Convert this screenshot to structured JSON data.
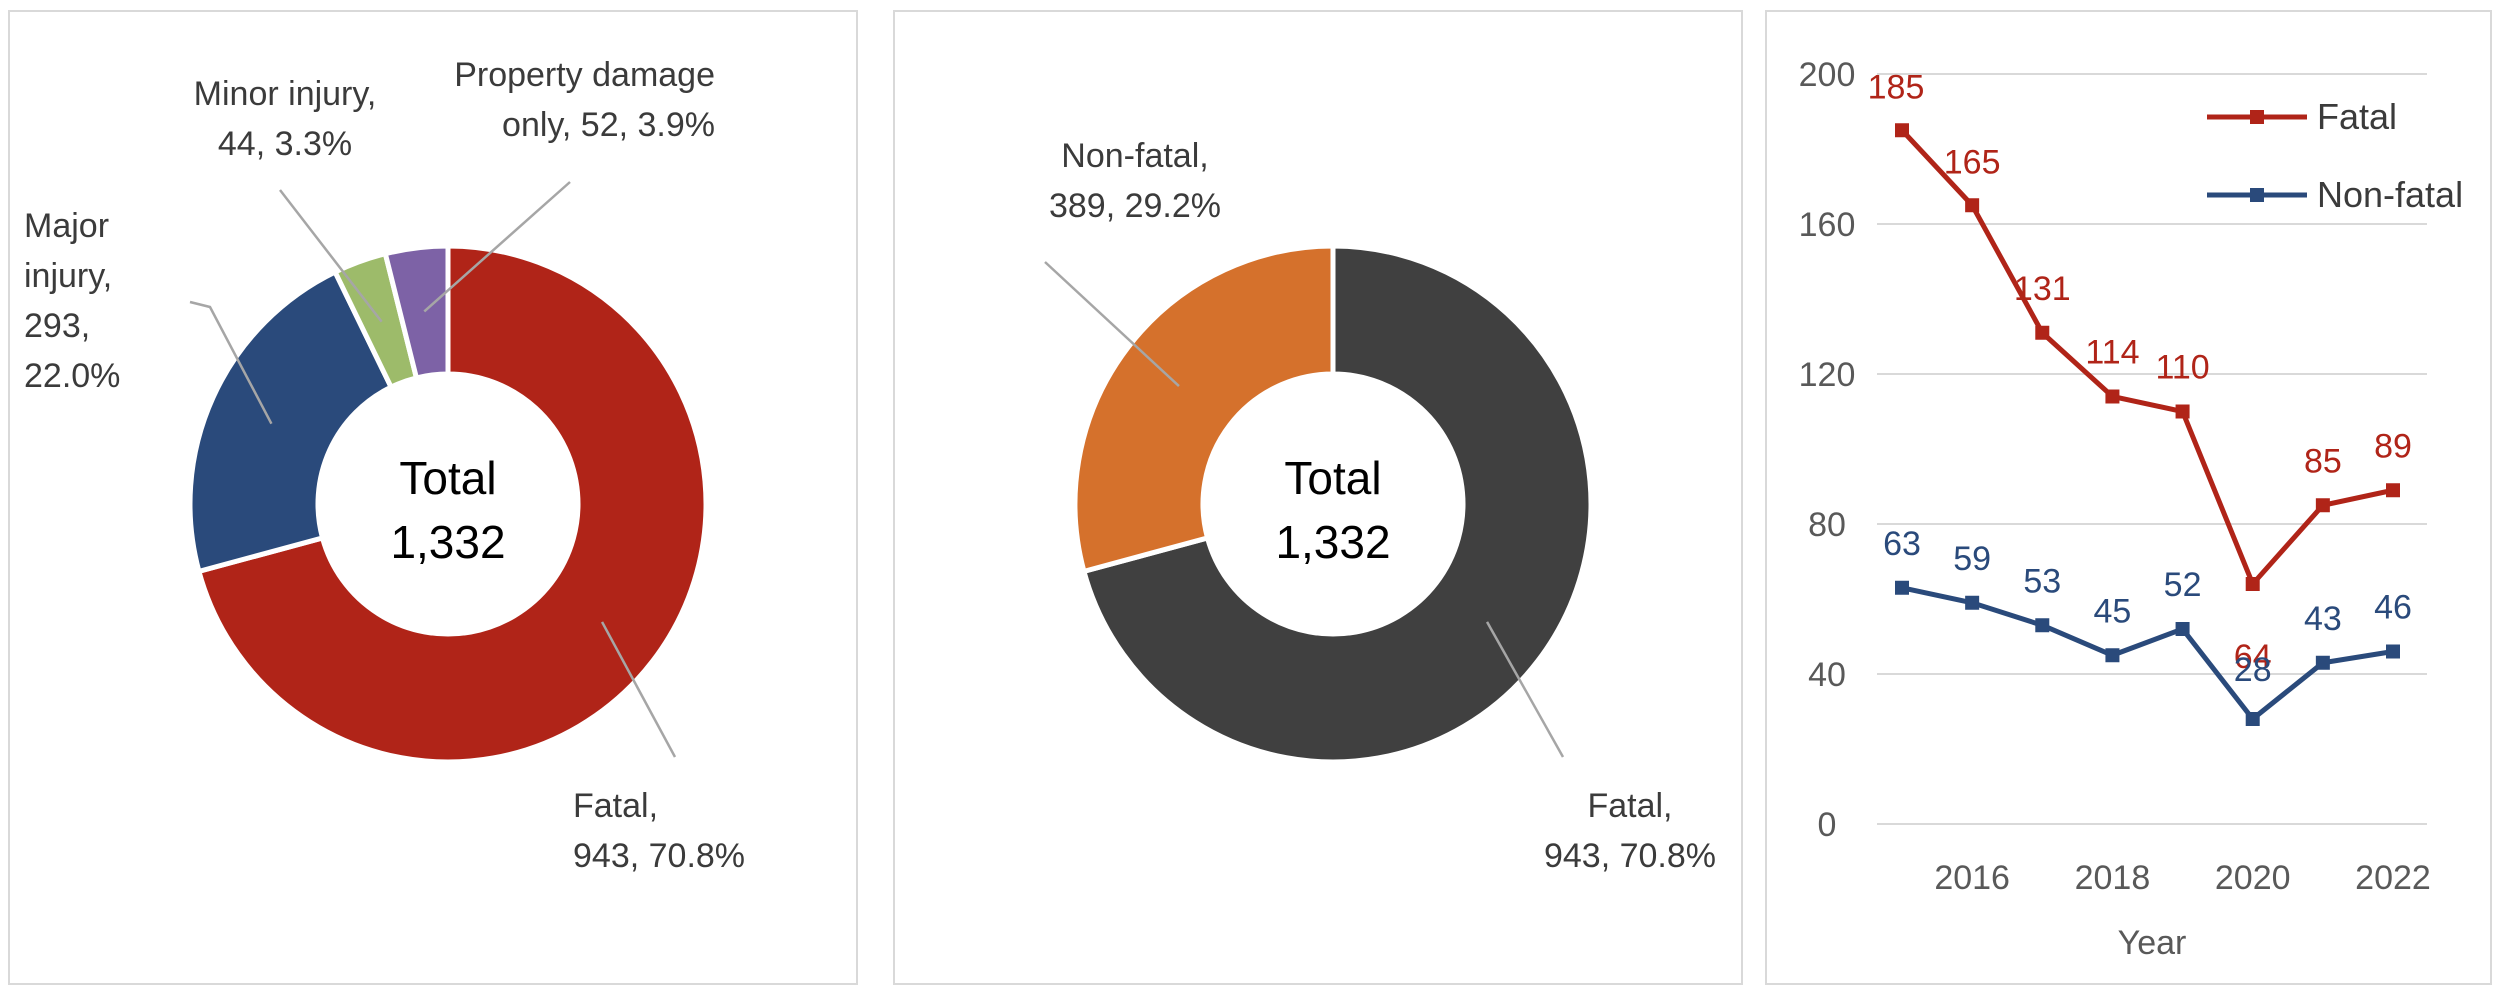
{
  "chart_data": [
    {
      "type": "pie",
      "center_label": [
        "Total",
        "1,332"
      ],
      "slices": [
        {
          "name": "Fatal",
          "value": 943,
          "percent": "70.8%",
          "color": "#b02418",
          "label_lines": [
            "Fatal,",
            "943, 70.8%"
          ]
        },
        {
          "name": "Major injury",
          "value": 293,
          "percent": "22.0%",
          "color": "#2a4a7b",
          "label_lines": [
            "Major",
            "injury,",
            "293,",
            "22.0%"
          ]
        },
        {
          "name": "Minor injury",
          "value": 44,
          "percent": "3.3%",
          "color": "#9dbb6a",
          "label_lines": [
            "Minor injury,",
            "44, 3.3%"
          ]
        },
        {
          "name": "Property damage only",
          "value": 52,
          "percent": "3.9%",
          "color": "#7d62a6",
          "label_lines": [
            "Property damage",
            "only, 52, 3.9%"
          ]
        }
      ]
    },
    {
      "type": "pie",
      "center_label": [
        "Total",
        "1,332"
      ],
      "slices": [
        {
          "name": "Fatal",
          "value": 943,
          "percent": "70.8%",
          "color": "#404040",
          "label_lines": [
            "Fatal,",
            "943, 70.8%"
          ]
        },
        {
          "name": "Non-fatal",
          "value": 389,
          "percent": "29.2%",
          "color": "#d5712c",
          "label_lines": [
            "Non-fatal,",
            "389, 29.2%"
          ]
        }
      ]
    },
    {
      "type": "line",
      "x": [
        2015,
        2016,
        2017,
        2018,
        2019,
        2020,
        2021,
        2022
      ],
      "x_tick_labels": [
        "2016",
        "2018",
        "2020",
        "2022"
      ],
      "xlabel": "Year",
      "ylabel": "",
      "ylim": [
        0,
        200
      ],
      "y_ticks": [
        "0",
        "40",
        "80",
        "120",
        "160",
        "200"
      ],
      "grid": "horizontal",
      "legend": "top-right",
      "series": [
        {
          "name": "Fatal",
          "color": "#b02418",
          "values": [
            185,
            165,
            131,
            114,
            110,
            64,
            85,
            89
          ]
        },
        {
          "name": "Non-fatal",
          "color": "#2a4a7b",
          "values": [
            63,
            59,
            53,
            45,
            52,
            28,
            43,
            46
          ]
        }
      ]
    }
  ]
}
